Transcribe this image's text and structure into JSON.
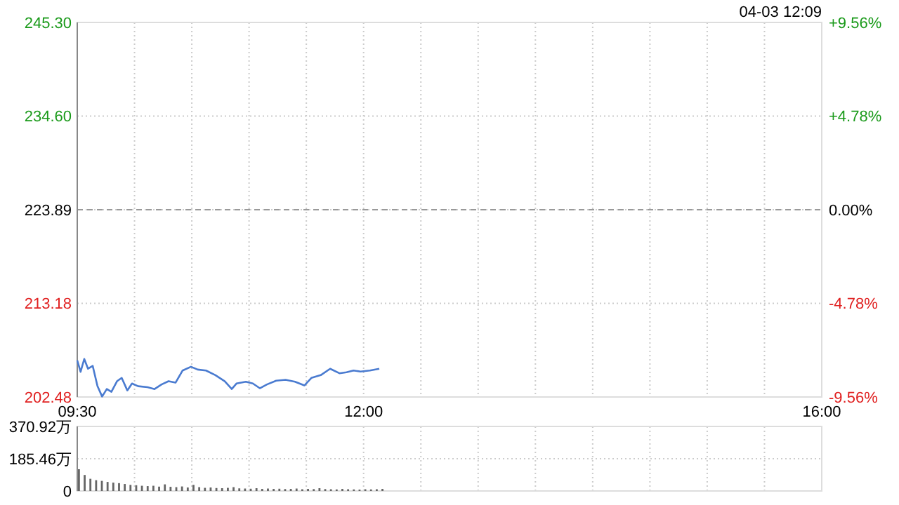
{
  "chart_data": [
    {
      "type": "line",
      "annotations": [
        "04-03 12:09"
      ],
      "x": [
        9.5,
        9.529,
        9.561,
        9.594,
        9.635,
        9.676,
        9.717,
        9.758,
        9.798,
        9.847,
        9.888,
        9.937,
        9.978,
        10.031,
        10.113,
        10.175,
        10.236,
        10.297,
        10.358,
        10.42,
        10.493,
        10.551,
        10.624,
        10.706,
        10.788,
        10.849,
        10.89,
        10.972,
        11.033,
        11.094,
        11.156,
        11.237,
        11.319,
        11.401,
        11.483,
        11.544,
        11.626,
        11.708,
        11.789,
        11.851,
        11.912,
        11.973,
        12.055,
        12.137
      ],
      "series": [
        {
          "color": "#4a7bd0",
          "values": [
            206.67,
            205.35,
            206.83,
            205.71,
            206.03,
            203.75,
            202.53,
            203.39,
            203.07,
            204.28,
            204.66,
            203.23,
            204.02,
            203.71,
            203.6,
            203.39,
            203.91,
            204.28,
            204.12,
            205.51,
            205.94,
            205.62,
            205.51,
            204.98,
            204.28,
            203.39,
            204.02,
            204.23,
            204.02,
            203.48,
            203.91,
            204.34,
            204.44,
            204.23,
            203.8,
            204.66,
            204.98,
            205.71,
            205.19,
            205.3,
            205.51,
            205.39,
            205.51,
            205.71
          ]
        }
      ],
      "xlim": [
        9.5,
        16
      ],
      "xticks": [
        {
          "value": 9.5,
          "label": "09:30"
        },
        {
          "value": 10,
          "label": null
        },
        {
          "value": 10.5,
          "label": null
        },
        {
          "value": 11,
          "label": null
        },
        {
          "value": 11.5,
          "label": null
        },
        {
          "value": 12,
          "label": "12:00"
        },
        {
          "value": 12.5,
          "label": null
        },
        {
          "value": 13,
          "label": null
        },
        {
          "value": 13.5,
          "label": null
        },
        {
          "value": 14,
          "label": null
        },
        {
          "value": 14.5,
          "label": null
        },
        {
          "value": 15,
          "label": null
        },
        {
          "value": 15.5,
          "label": null
        },
        {
          "value": 16,
          "label": "16:00"
        }
      ],
      "ylim": [
        202.48,
        245.3
      ],
      "yticks": [
        202.48,
        213.18,
        223.89,
        {
          "value": 234.6,
          "label": "234.60"
        },
        {
          "value": 245.3,
          "label": "245.30"
        }
      ],
      "y2lim": [
        -9.56,
        9.56
      ],
      "y2ticks": [
        {
          "value": -9.56,
          "label": "-9.56%"
        },
        {
          "value": -4.78,
          "label": "-4.78%"
        },
        {
          "value": 0,
          "label": "0.00%"
        },
        {
          "value": 4.78,
          "label": "+4.78%"
        },
        {
          "value": 9.56,
          "label": "+9.56%"
        }
      ],
      "ref_lines": [
        {
          "axis": "y",
          "value": 223.89,
          "color": "#999999",
          "line_style": "dashed"
        }
      ],
      "grid": true,
      "marker": "none",
      "line_style": "solid"
    },
    {
      "type": "bar",
      "x": [
        9.5,
        9.55,
        9.6,
        9.65,
        9.7,
        9.75,
        9.8,
        9.85,
        9.9,
        9.95,
        10,
        10.05,
        10.1,
        10.15,
        10.2,
        10.25,
        10.3,
        10.35,
        10.4,
        10.45,
        10.5,
        10.55,
        10.6,
        10.65,
        10.7,
        10.75,
        10.8,
        10.85,
        10.9,
        10.95,
        11,
        11.05,
        11.1,
        11.15,
        11.2,
        11.25,
        11.3,
        11.35,
        11.4,
        11.45,
        11.5,
        11.55,
        11.6,
        11.65,
        11.7,
        11.75,
        11.8,
        11.85,
        11.9,
        11.95,
        12,
        12.05,
        12.1,
        12.15
      ],
      "series": [
        {
          "color": "#666666",
          "values": [
            125,
            92,
            70,
            62,
            58,
            52,
            48,
            45,
            40,
            35,
            33,
            30,
            28,
            30,
            25,
            38,
            24,
            22,
            26,
            20,
            35,
            22,
            18,
            20,
            17,
            16,
            18,
            22,
            15,
            14,
            13,
            16,
            12,
            14,
            12,
            13,
            11,
            12,
            14,
            10,
            12,
            11,
            16,
            11,
            10,
            9,
            12,
            10,
            9,
            8,
            10,
            9,
            10,
            12
          ]
        }
      ],
      "xlim": [
        9.5,
        16
      ],
      "xticks": [
        9.5,
        10,
        10.5,
        11,
        11.5,
        12,
        12.5,
        13,
        13.5,
        14,
        14.5,
        15,
        15.5,
        16
      ],
      "ylim": [
        0,
        370.92
      ],
      "yticks": [
        0,
        {
          "value": 185.46,
          "label": "185.46万"
        },
        {
          "value": 370.92,
          "label": "370.92万"
        }
      ],
      "tick_labels": "y",
      "grid": true
    }
  ]
}
